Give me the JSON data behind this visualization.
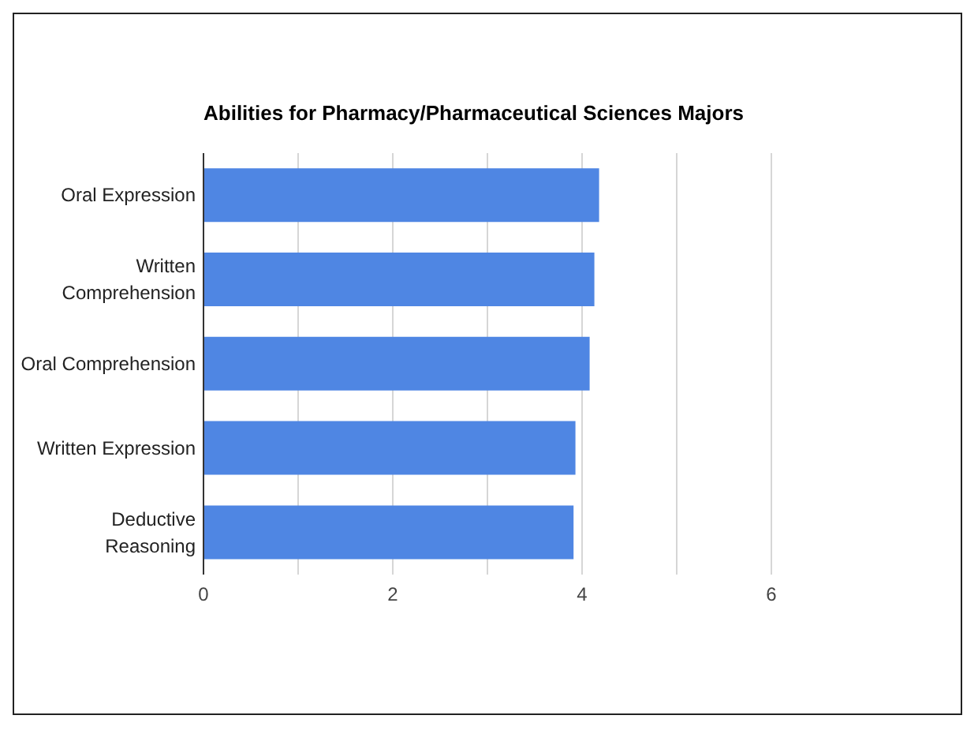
{
  "chart_data": {
    "type": "bar",
    "orientation": "horizontal",
    "title": "Abilities for Pharmacy/Pharmaceutical Sciences Majors",
    "categories": [
      "Oral Expression",
      "Written Comprehension",
      "Oral Comprehension",
      "Written Expression",
      "Deductive Reasoning"
    ],
    "values": [
      4.18,
      4.13,
      4.08,
      3.93,
      3.91
    ],
    "color": "#4f86e3",
    "xlim": [
      0,
      6
    ],
    "xticks": [
      0,
      {
        "value": 1,
        "label": null
      },
      2,
      {
        "value": 3,
        "label": null
      },
      4,
      {
        "value": 5,
        "label": null
      },
      6
    ],
    "grid": "x"
  }
}
